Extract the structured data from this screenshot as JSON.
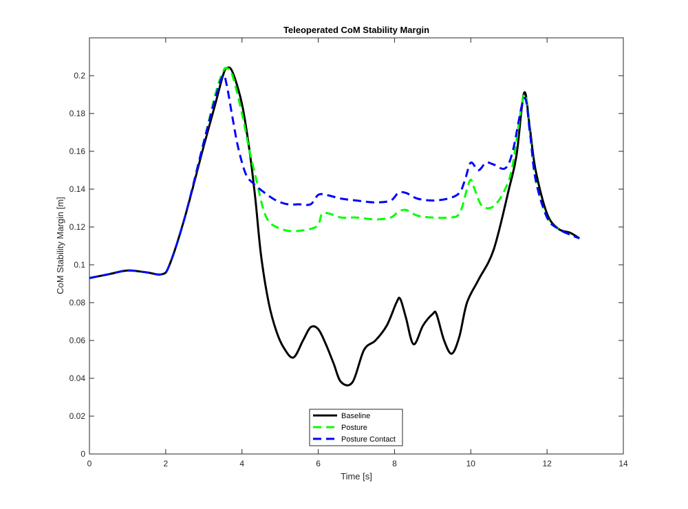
{
  "chart_data": {
    "type": "line",
    "title": "Teleoperated CoM Stability Margin",
    "xlabel": "Time [s]",
    "ylabel": "CoM Stability Margin [m]",
    "xlim": [
      0,
      14
    ],
    "ylim": [
      0,
      0.22
    ],
    "xticks": [
      "0",
      "2",
      "4",
      "6",
      "8",
      "10",
      "12",
      "14"
    ],
    "yticks": [
      "0",
      "0.02",
      "0.04",
      "0.06",
      "0.08",
      "0.1",
      "0.12",
      "0.14",
      "0.16",
      "0.18",
      "0.2"
    ],
    "grid": false,
    "legend_position": "bottom-center",
    "series": [
      {
        "name": "Baseline",
        "color": "#000000",
        "style": "solid",
        "x": [
          0,
          0.5,
          1.0,
          1.5,
          1.9,
          2.1,
          2.5,
          3.0,
          3.3,
          3.5,
          3.6,
          3.75,
          4.0,
          4.2,
          4.35,
          4.5,
          4.7,
          4.9,
          5.1,
          5.35,
          5.6,
          5.8,
          6.0,
          6.2,
          6.4,
          6.6,
          6.9,
          7.2,
          7.5,
          7.8,
          8.05,
          8.15,
          8.3,
          8.5,
          8.75,
          9.0,
          9.1,
          9.3,
          9.5,
          9.7,
          9.9,
          10.2,
          10.6,
          11.0,
          11.2,
          11.4,
          11.55,
          11.7,
          12.0,
          12.3,
          12.6,
          12.85
        ],
        "y": [
          0.093,
          0.095,
          0.097,
          0.096,
          0.095,
          0.1,
          0.125,
          0.163,
          0.185,
          0.2,
          0.204,
          0.202,
          0.185,
          0.16,
          0.135,
          0.105,
          0.08,
          0.065,
          0.056,
          0.051,
          0.06,
          0.067,
          0.066,
          0.058,
          0.048,
          0.038,
          0.038,
          0.055,
          0.06,
          0.068,
          0.08,
          0.082,
          0.072,
          0.058,
          0.068,
          0.074,
          0.074,
          0.06,
          0.053,
          0.062,
          0.08,
          0.092,
          0.108,
          0.14,
          0.158,
          0.191,
          0.172,
          0.15,
          0.127,
          0.119,
          0.117,
          0.114
        ]
      },
      {
        "name": "Posture",
        "color": "#00ff00",
        "style": "dashed",
        "x": [
          0,
          0.5,
          1.0,
          1.5,
          1.9,
          2.1,
          2.5,
          3.0,
          3.3,
          3.5,
          3.6,
          3.75,
          4.0,
          4.2,
          4.4,
          4.55,
          4.7,
          4.9,
          5.2,
          5.5,
          5.8,
          6.0,
          6.1,
          6.3,
          6.6,
          7.0,
          7.5,
          7.9,
          8.1,
          8.3,
          8.6,
          9.0,
          9.4,
          9.7,
          9.9,
          10.0,
          10.1,
          10.3,
          10.6,
          10.9,
          11.1,
          11.4,
          11.55,
          11.7,
          12.0,
          12.3,
          12.6,
          12.85
        ],
        "y": [
          0.093,
          0.095,
          0.097,
          0.096,
          0.095,
          0.1,
          0.125,
          0.165,
          0.19,
          0.202,
          0.204,
          0.2,
          0.18,
          0.16,
          0.143,
          0.13,
          0.123,
          0.12,
          0.118,
          0.118,
          0.119,
          0.121,
          0.127,
          0.127,
          0.125,
          0.125,
          0.124,
          0.125,
          0.128,
          0.129,
          0.126,
          0.125,
          0.125,
          0.127,
          0.14,
          0.145,
          0.14,
          0.131,
          0.131,
          0.14,
          0.153,
          0.19,
          0.17,
          0.145,
          0.125,
          0.119,
          0.116,
          0.114
        ]
      },
      {
        "name": "Posture Contact",
        "color": "#0000ff",
        "style": "dashed",
        "x": [
          0,
          0.5,
          1.0,
          1.5,
          1.9,
          2.1,
          2.5,
          3.0,
          3.3,
          3.5,
          3.6,
          3.75,
          3.9,
          4.1,
          4.3,
          4.6,
          4.9,
          5.2,
          5.5,
          5.8,
          6.0,
          6.2,
          6.6,
          7.0,
          7.5,
          7.9,
          8.1,
          8.3,
          8.6,
          9.0,
          9.4,
          9.7,
          9.85,
          10.0,
          10.2,
          10.4,
          10.6,
          10.9,
          11.1,
          11.4,
          11.55,
          11.7,
          12.0,
          12.3,
          12.6,
          12.85
        ],
        "y": [
          0.093,
          0.095,
          0.097,
          0.096,
          0.095,
          0.1,
          0.125,
          0.165,
          0.188,
          0.2,
          0.195,
          0.178,
          0.162,
          0.148,
          0.143,
          0.138,
          0.134,
          0.132,
          0.132,
          0.132,
          0.137,
          0.137,
          0.135,
          0.134,
          0.133,
          0.134,
          0.138,
          0.138,
          0.135,
          0.134,
          0.135,
          0.138,
          0.145,
          0.154,
          0.15,
          0.154,
          0.153,
          0.151,
          0.16,
          0.188,
          0.17,
          0.145,
          0.125,
          0.119,
          0.116,
          0.114
        ]
      }
    ]
  }
}
